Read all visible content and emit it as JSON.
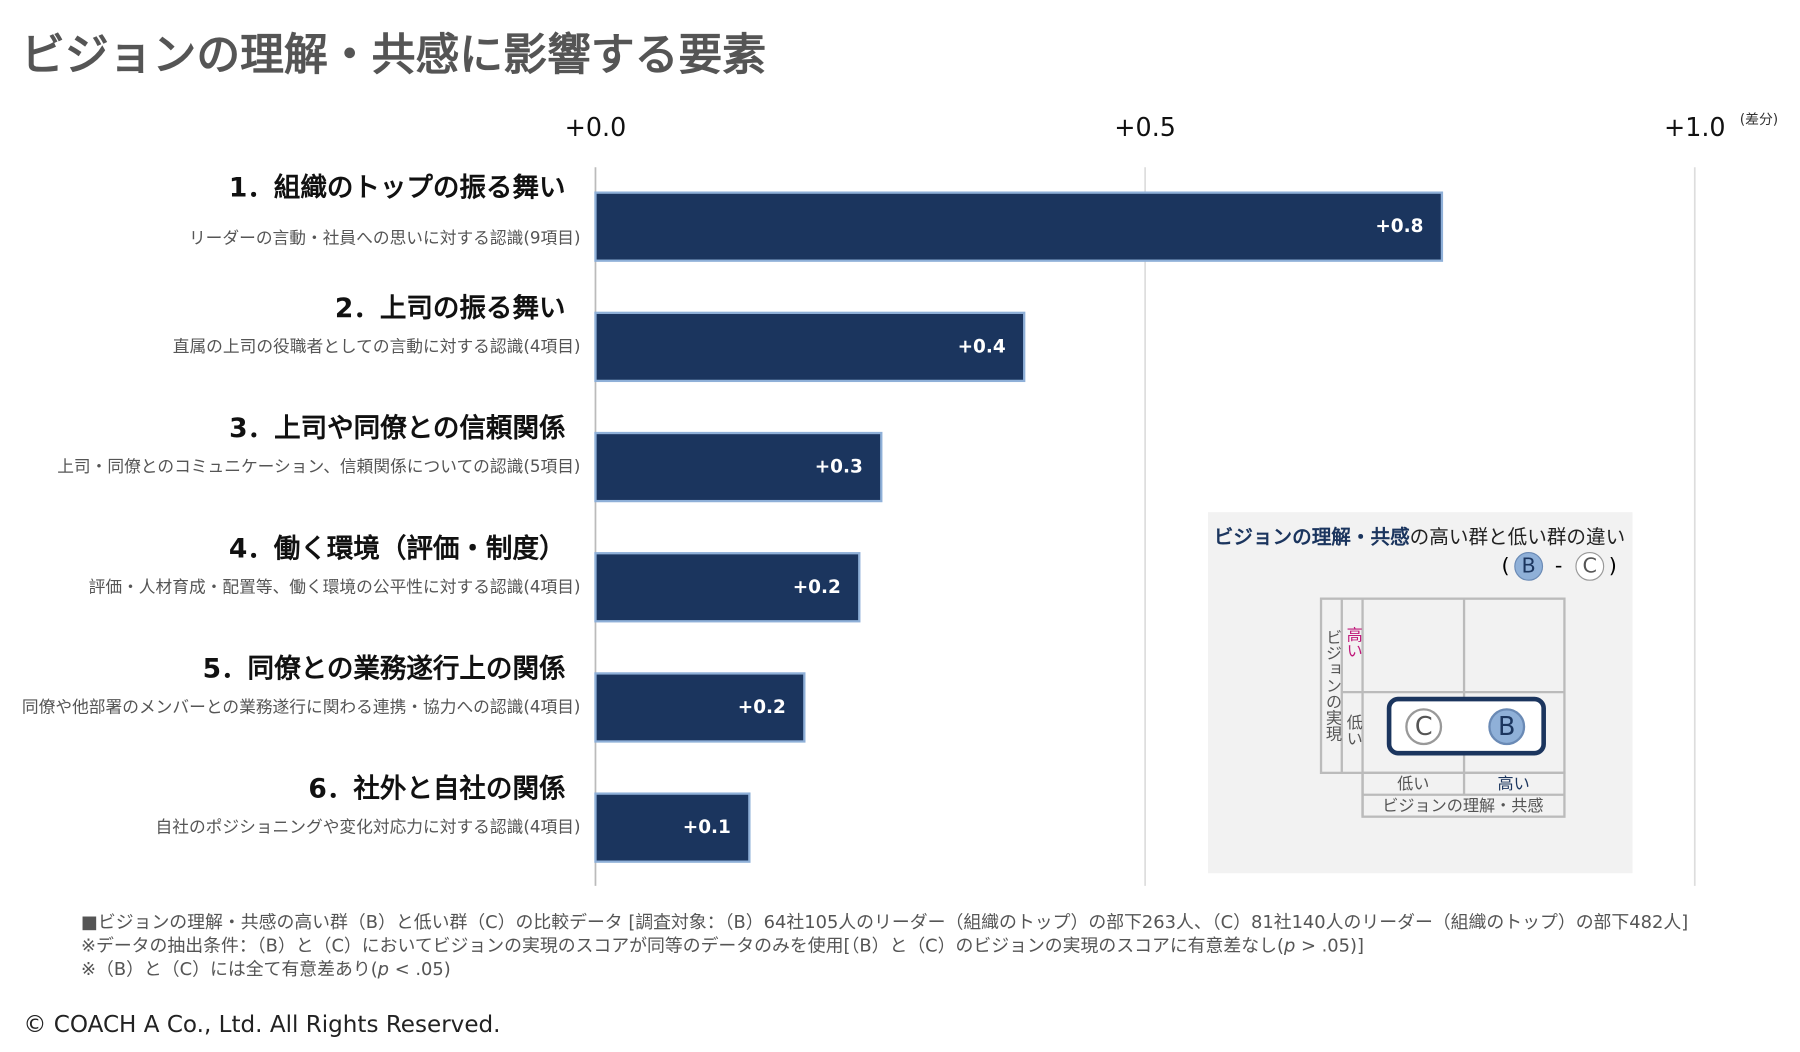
{
  "chart_data": {
    "type": "barh",
    "title": "ビジョンの理解・共感に影響する要素",
    "categories": [
      "1．組織のトップの振る舞い",
      "2．上司の振る舞い",
      "3．上司や同僚との信頼関係",
      "4．働く環境（評価・制度）",
      "5．同僚との業務遂行上の関係",
      "6．社外と自社の関係"
    ],
    "descriptions": [
      "リーダーの言動・社員への思いに対する認識(9項目)",
      "直属の上司の役職者としての言動に対する認識(4項目)",
      "上司・同僚とのコミュニケーション、信頼関係についての認識(5項目)",
      "評価・人材育成・配置等、働く環境の公平性に対する認識(4項目)",
      "同僚や他部署のメンバーとの業務遂行に関わる連携・協力への認識(4項目)",
      "自社のポジショニングや変化対応力に対する認識(4項目)"
    ],
    "values": [
      0.77,
      0.39,
      0.26,
      0.24,
      0.19,
      0.14
    ],
    "value_labels": [
      "+0.8",
      "+0.4",
      "+0.3",
      "+0.2",
      "+0.2",
      "+0.1"
    ],
    "color": "#1b355e",
    "xlim": [
      0,
      1
    ],
    "xticks": [
      {
        "value": 0,
        "label": "+0.0"
      },
      {
        "value": 0.5,
        "label": "+0.5"
      },
      {
        "value": 1,
        "label": "+1.0"
      }
    ],
    "x_unit": "(差分)",
    "grid": true
  },
  "inset": {
    "title_bold": "ビジョンの理解・共感",
    "title_rest": "の高い群と低い群の違い",
    "formula": [
      "(",
      "B",
      "-",
      "C",
      ")"
    ],
    "y_title": "ビジョンの実現",
    "y_high": "高い",
    "y_low": "低い",
    "x_low": "低い",
    "x_high": "高い",
    "x_title": "ビジョンの理解・共感"
  },
  "notes": [
    [
      "■ビジョンの理解・共感の高い群（B）と低い群（C）の比較データ [調査対象：（B）64社105人のリーダー（組織のトップ）の部下263人、（C）81社140人のリーダー（組織のトップ）の部下482人]"
    ],
    [
      "※データの抽出条件：（B）と（C）においてビジョンの実現のスコアが同等のデータのみを使用[（B）と（C）のビジョンの実現のスコアに有意差なし(",
      "p",
      " > .05)]"
    ],
    [
      "※（B）と（C）には全て有意差あり(",
      "p",
      " < .05)"
    ]
  ],
  "footer": "© COACH A Co., Ltd.  All Rights Reserved."
}
